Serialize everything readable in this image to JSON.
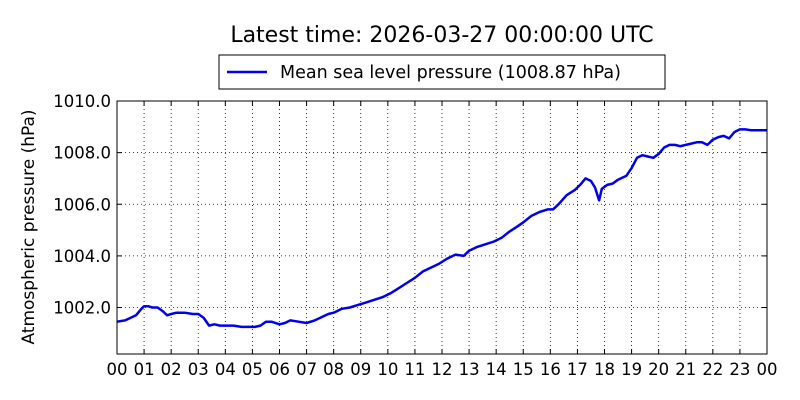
{
  "chart_data": {
    "type": "line",
    "title": "Latest time: 2026-03-27 00:00:00 UTC",
    "xlabel": "",
    "ylabel": "Atmospheric pressure (hPa)",
    "xlim": [
      0,
      24
    ],
    "ylim": [
      1000.2,
      1010.0
    ],
    "x_tick_values": [
      0,
      1,
      2,
      3,
      4,
      5,
      6,
      7,
      8,
      9,
      10,
      11,
      12,
      13,
      14,
      15,
      16,
      17,
      18,
      19,
      20,
      21,
      22,
      23,
      24
    ],
    "x_tick_labels": [
      "00",
      "01",
      "02",
      "03",
      "04",
      "05",
      "06",
      "07",
      "08",
      "09",
      "10",
      "11",
      "12",
      "13",
      "14",
      "15",
      "16",
      "17",
      "18",
      "19",
      "20",
      "21",
      "22",
      "23",
      "00"
    ],
    "y_tick_values": [
      1002.0,
      1004.0,
      1006.0,
      1008.0,
      1010.0
    ],
    "y_tick_labels": [
      "1002.0",
      "1004.0",
      "1006.0",
      "1008.0",
      "1010.0"
    ],
    "grid": true,
    "legend_position": "top-center",
    "series": [
      {
        "name": "Mean sea level pressure (1008.87 hPa)",
        "color": "#0000ee",
        "x": [
          0.0,
          0.3,
          0.5,
          0.7,
          0.9,
          1.0,
          1.15,
          1.3,
          1.5,
          1.7,
          1.85,
          2.0,
          2.2,
          2.5,
          2.8,
          3.0,
          3.2,
          3.4,
          3.6,
          3.8,
          4.0,
          4.3,
          4.6,
          4.9,
          5.1,
          5.3,
          5.5,
          5.7,
          6.0,
          6.2,
          6.4,
          6.7,
          7.0,
          7.3,
          7.5,
          7.8,
          8.0,
          8.3,
          8.6,
          8.9,
          9.2,
          9.5,
          9.8,
          10.1,
          10.4,
          10.7,
          11.0,
          11.3,
          11.6,
          11.9,
          12.2,
          12.5,
          12.8,
          13.0,
          13.3,
          13.6,
          13.9,
          14.2,
          14.5,
          14.8,
          15.0,
          15.3,
          15.6,
          15.9,
          16.1,
          16.3,
          16.6,
          16.9,
          17.1,
          17.3,
          17.5,
          17.65,
          17.8,
          17.9,
          18.1,
          18.3,
          18.5,
          18.8,
          19.0,
          19.2,
          19.4,
          19.6,
          19.8,
          20.0,
          20.2,
          20.4,
          20.6,
          20.8,
          21.0,
          21.2,
          21.4,
          21.6,
          21.8,
          22.0,
          22.2,
          22.4,
          22.6,
          22.8,
          23.0,
          23.2,
          23.4,
          23.6,
          23.8,
          24.0
        ],
        "y": [
          1001.45,
          1001.5,
          1001.6,
          1001.7,
          1001.95,
          1002.05,
          1002.05,
          1002.0,
          1002.0,
          1001.85,
          1001.7,
          1001.75,
          1001.8,
          1001.8,
          1001.75,
          1001.75,
          1001.6,
          1001.3,
          1001.35,
          1001.3,
          1001.3,
          1001.3,
          1001.25,
          1001.25,
          1001.25,
          1001.3,
          1001.45,
          1001.45,
          1001.35,
          1001.4,
          1001.5,
          1001.45,
          1001.4,
          1001.5,
          1001.6,
          1001.75,
          1001.8,
          1001.95,
          1002.0,
          1002.1,
          1002.2,
          1002.3,
          1002.4,
          1002.55,
          1002.75,
          1002.95,
          1003.15,
          1003.4,
          1003.55,
          1003.7,
          1003.9,
          1004.05,
          1004.0,
          1004.2,
          1004.35,
          1004.45,
          1004.55,
          1004.7,
          1004.95,
          1005.15,
          1005.3,
          1005.55,
          1005.7,
          1005.8,
          1005.8,
          1006.0,
          1006.35,
          1006.55,
          1006.75,
          1007.0,
          1006.9,
          1006.65,
          1006.15,
          1006.6,
          1006.75,
          1006.8,
          1006.95,
          1007.1,
          1007.4,
          1007.8,
          1007.9,
          1007.85,
          1007.8,
          1007.95,
          1008.2,
          1008.3,
          1008.3,
          1008.25,
          1008.3,
          1008.35,
          1008.4,
          1008.4,
          1008.3,
          1008.5,
          1008.6,
          1008.65,
          1008.55,
          1008.8,
          1008.9,
          1008.9,
          1008.87,
          1008.87,
          1008.87,
          1008.87
        ]
      }
    ]
  }
}
